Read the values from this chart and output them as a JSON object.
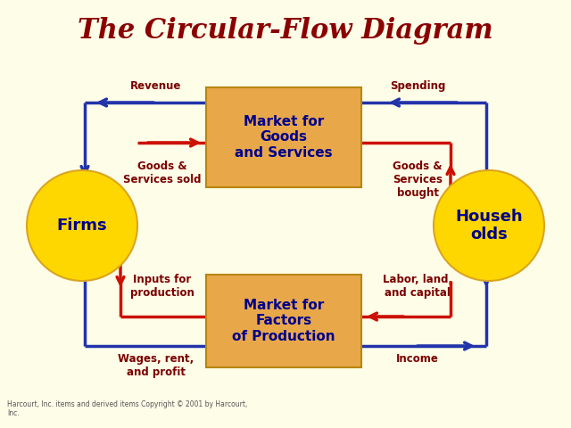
{
  "title": "The Circular-Flow Diagram",
  "title_color": "#8B0000",
  "title_fontsize": 22,
  "bg_color": "#FDFDE8",
  "box_fill": "#E8A84A",
  "box_edge_color": "#B8860B",
  "box_text_color": "#00008B",
  "circle_fill": "#FFD700",
  "circle_edge_color": "#DAA520",
  "circle_text_color": "#00008B",
  "arrow_blue": "#2233AA",
  "arrow_red": "#CC1100",
  "label_color": "#7B0000",
  "lw": 2.5,
  "ms": 14,
  "firms_label": "Firms",
  "households_label": "Househ\nolds",
  "goods_market_label": "Market for\nGoods\nand Services",
  "factors_market_label": "Market for\nFactors\nof Production",
  "revenue": "Revenue",
  "spending": "Spending",
  "goods_sold": "Goods &\nServices sold",
  "goods_bought": "Goods &\nServices\nbought",
  "inputs": "Inputs for\nproduction",
  "labor": "Labor, land,\nand capital",
  "wages": "Wages, rent,\nand profit",
  "income": "Income",
  "footer": "Harcourt, Inc. items and derived items Copyright © 2001 by Harcourt,\nInc."
}
